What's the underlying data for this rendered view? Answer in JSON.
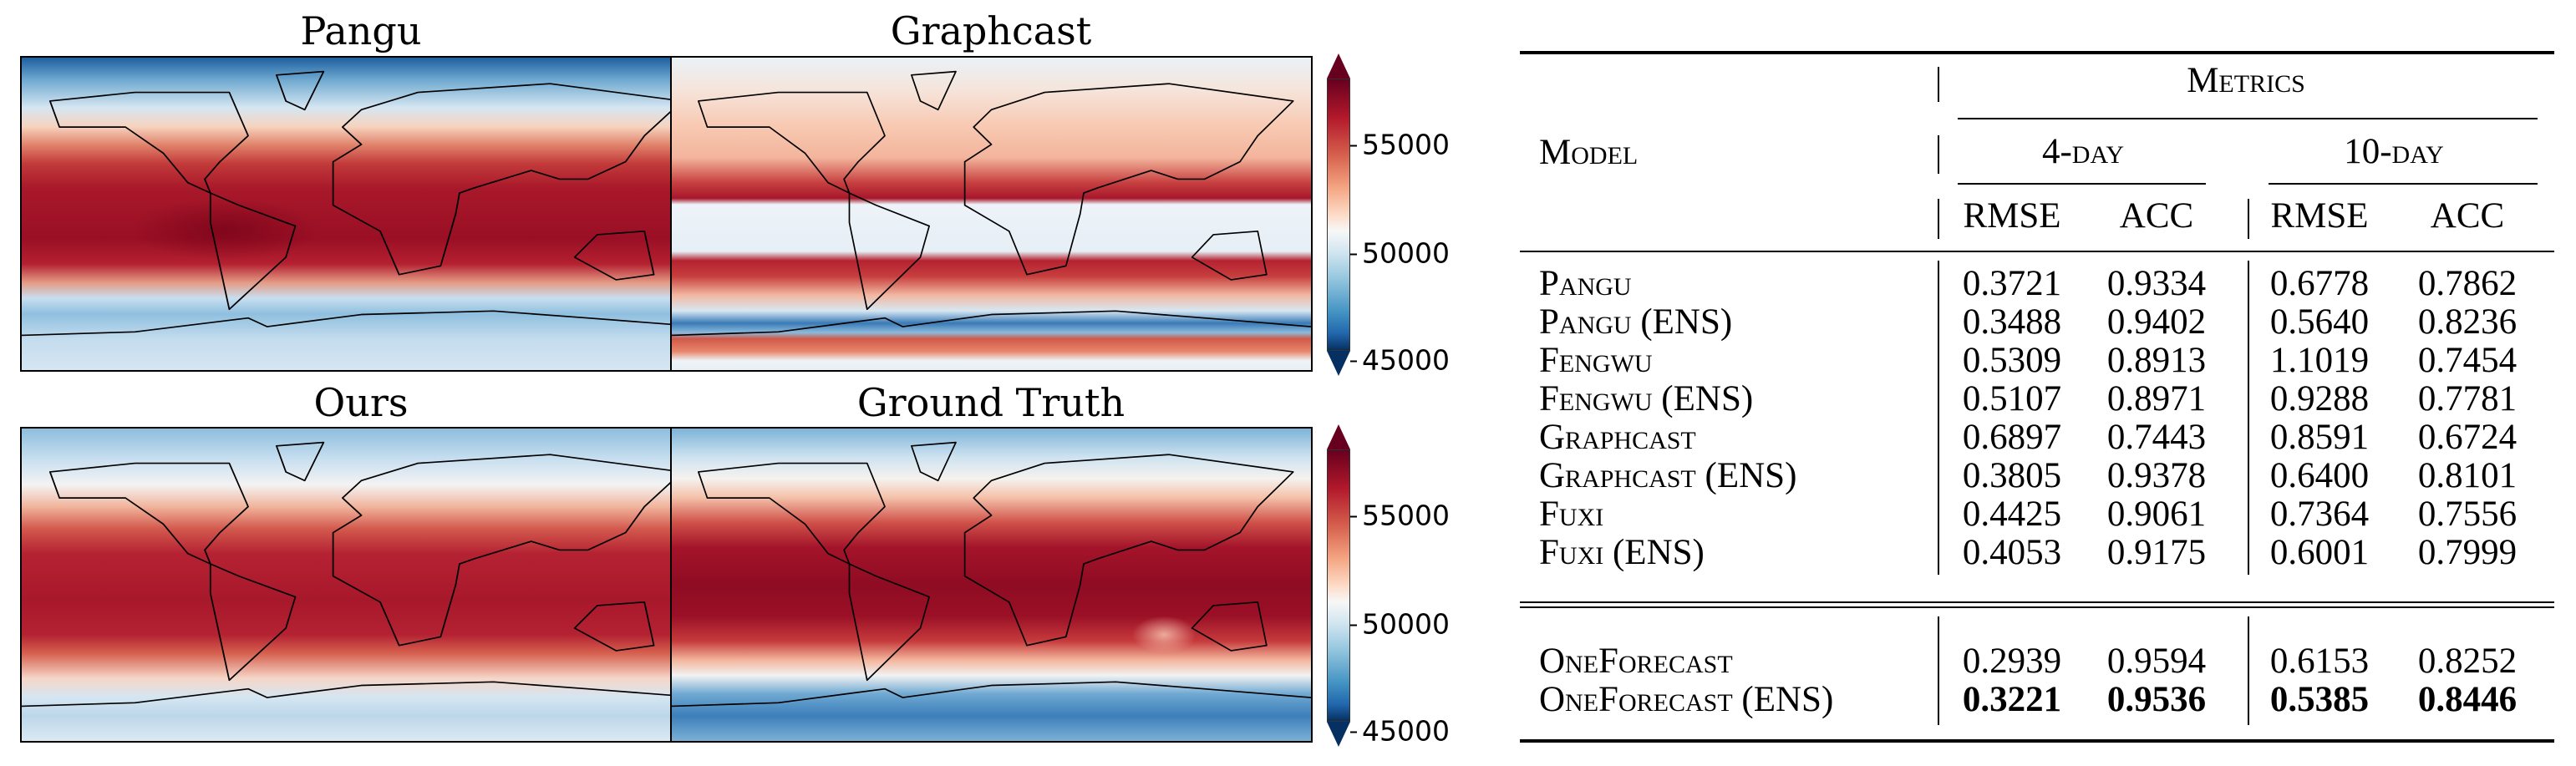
{
  "figure": {
    "panels": [
      {
        "title": "Pangu"
      },
      {
        "title": "Graphcast"
      },
      {
        "title": "Ours"
      },
      {
        "title": "Ground Truth"
      }
    ],
    "colorbar": {
      "ticks": [
        "55000",
        "50000",
        "45000"
      ],
      "min": 45000,
      "max": 58500,
      "colormap": "RdBu_r"
    }
  },
  "table": {
    "header": {
      "model": "Model",
      "metrics": "Metrics",
      "day4": "4-day",
      "day10": "10-day",
      "rmse": "RMSE",
      "acc": "ACC"
    },
    "rows": [
      {
        "model": "Pangu",
        "v": [
          "0.3721",
          "0.9334",
          "0.6778",
          "0.7862"
        ]
      },
      {
        "model": "Pangu (ENS)",
        "v": [
          "0.3488",
          "0.9402",
          "0.5640",
          "0.8236"
        ]
      },
      {
        "model": "Fengwu",
        "v": [
          "0.5309",
          "0.8913",
          "1.1019",
          "0.7454"
        ]
      },
      {
        "model": "Fengwu (ENS)",
        "v": [
          "0.5107",
          "0.8971",
          "0.9288",
          "0.7781"
        ]
      },
      {
        "model": "Graphcast",
        "v": [
          "0.6897",
          "0.7443",
          "0.8591",
          "0.6724"
        ]
      },
      {
        "model": "Graphcast (ENS)",
        "v": [
          "0.3805",
          "0.9378",
          "0.6400",
          "0.8101"
        ]
      },
      {
        "model": "Fuxi",
        "v": [
          "0.4425",
          "0.9061",
          "0.7364",
          "0.7556"
        ]
      },
      {
        "model": "Fuxi (ENS)",
        "v": [
          "0.4053",
          "0.9175",
          "0.6001",
          "0.7999"
        ]
      }
    ],
    "ours": [
      {
        "model": "OneForecast",
        "v": [
          "0.2939",
          "0.9594",
          "0.6153",
          "0.8252"
        ]
      },
      {
        "model": "OneForecast (ENS)",
        "v": [
          "0.3221",
          "0.9536",
          "0.5385",
          "0.8446"
        ],
        "bold": true
      }
    ]
  },
  "chart_data": {
    "type": "heatmap",
    "title": "",
    "panels": [
      "Pangu",
      "Graphcast",
      "Ours",
      "Ground Truth"
    ],
    "colorbar_range": [
      45000,
      58500
    ],
    "colorbar_ticks": [
      45000,
      50000,
      55000
    ]
  }
}
